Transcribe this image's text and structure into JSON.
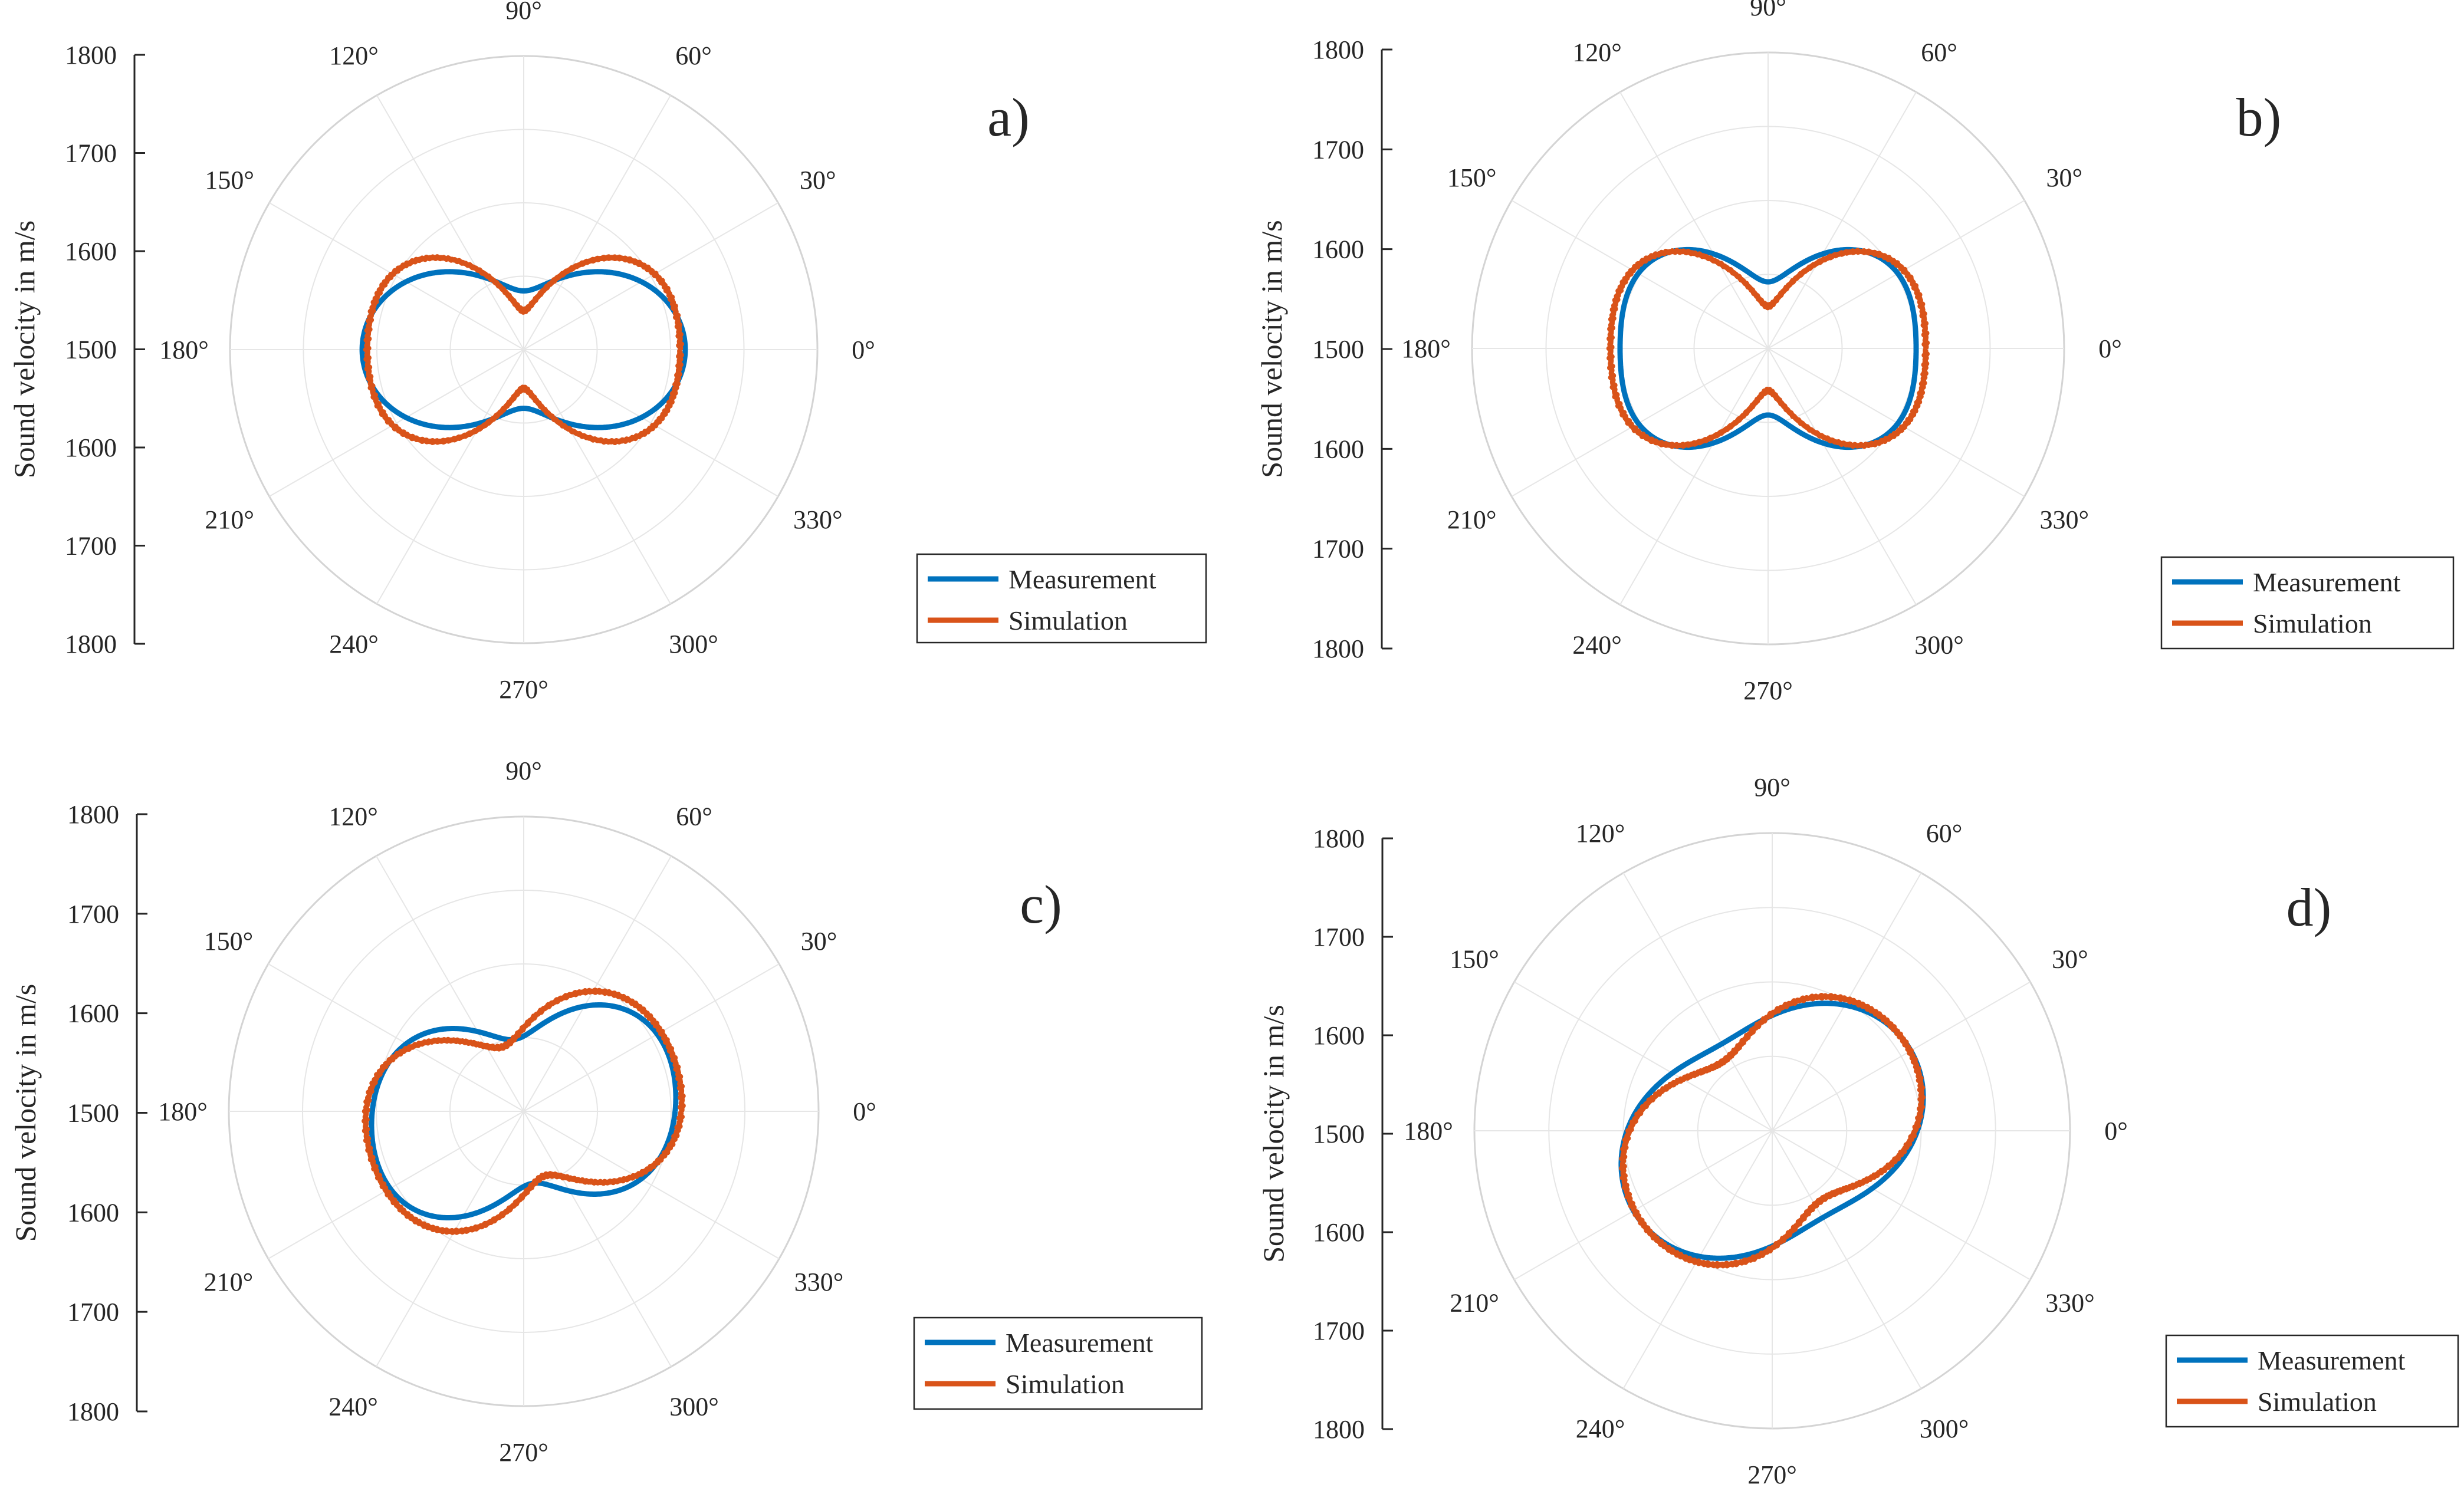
{
  "chart_data": [
    {
      "type": "polar-line",
      "panel_label": "a)",
      "ylabel": "Sound velocity in m/s",
      "y_ticks": [
        "1800",
        "1700",
        "1600",
        "1500",
        "1600",
        "1700",
        "1800"
      ],
      "r_range": [
        1400,
        1800
      ],
      "angle_labels": [
        "0°",
        "30°",
        "60°",
        "90°",
        "120°",
        "150°",
        "180°",
        "210°",
        "240°",
        "270°",
        "300°",
        "330°"
      ],
      "legend": [
        "Measurement",
        "Simulation"
      ],
      "series": [
        {
          "name": "Measurement",
          "color": "#0072BD",
          "a": 1550,
          "b": 70,
          "phi": 0,
          "c": 0,
          "psi": 0
        },
        {
          "name": "Simulation",
          "color": "#D95319",
          "a": 1555,
          "b": 80,
          "phi": 0,
          "c": 22,
          "psi": 0
        }
      ]
    },
    {
      "type": "polar-line",
      "panel_label": "b)",
      "ylabel": "Sound velocity in m/s",
      "y_ticks": [
        "1800",
        "1700",
        "1600",
        "1500",
        "1600",
        "1700",
        "1800"
      ],
      "r_range": [
        1400,
        1800
      ],
      "angle_labels": [
        "0°",
        "30°",
        "60°",
        "90°",
        "120°",
        "150°",
        "180°",
        "210°",
        "240°",
        "270°",
        "300°",
        "330°"
      ],
      "legend": [
        "Measurement",
        "Simulation"
      ],
      "series": [
        {
          "name": "Measurement",
          "color": "#0072BD",
          "a": 1565,
          "b": 55,
          "phi": 0,
          "c": 20,
          "psi": 0
        },
        {
          "name": "Simulation",
          "color": "#D95319",
          "a": 1560,
          "b": 78,
          "phi": 0,
          "c": 25,
          "psi": 0
        }
      ]
    },
    {
      "type": "polar-line",
      "panel_label": "c)",
      "ylabel": "Sound velocity in m/s",
      "y_ticks": [
        "1800",
        "1700",
        "1600",
        "1500",
        "1600",
        "1700",
        "1800"
      ],
      "r_range": [
        1400,
        1800
      ],
      "angle_labels": [
        "0°",
        "30°",
        "60°",
        "90°",
        "120°",
        "150°",
        "180°",
        "210°",
        "240°",
        "270°",
        "300°",
        "330°"
      ],
      "legend": [
        "Measurement",
        "Simulation"
      ],
      "series": [
        {
          "name": "Measurement",
          "color": "#0072BD",
          "a": 1565,
          "b": 55,
          "phi": 10,
          "c": 12,
          "psi": 5
        },
        {
          "name": "Simulation",
          "color": "#D95319",
          "a": 1568,
          "b": 62,
          "phi": 18,
          "c": 14,
          "psi": 18
        }
      ]
    },
    {
      "type": "polar-line",
      "panel_label": "d)",
      "ylabel": "Sound velocity in m/s",
      "y_ticks": [
        "1800",
        "1700",
        "1600",
        "1500",
        "1600",
        "1700",
        "1800"
      ],
      "r_range": [
        1400,
        1800
      ],
      "angle_labels": [
        "0°",
        "30°",
        "60°",
        "90°",
        "120°",
        "150°",
        "180°",
        "210°",
        "240°",
        "270°",
        "300°",
        "330°"
      ],
      "legend": [
        "Measurement",
        "Simulation"
      ],
      "series": [
        {
          "name": "Measurement",
          "color": "#0072BD",
          "a": 1575,
          "b": 40,
          "phi": 30,
          "c": 0,
          "psi": 0
        },
        {
          "name": "Simulation",
          "color": "#D95319",
          "a": 1570,
          "b": 50,
          "phi": 35,
          "c": 6,
          "psi": 35
        }
      ]
    }
  ]
}
